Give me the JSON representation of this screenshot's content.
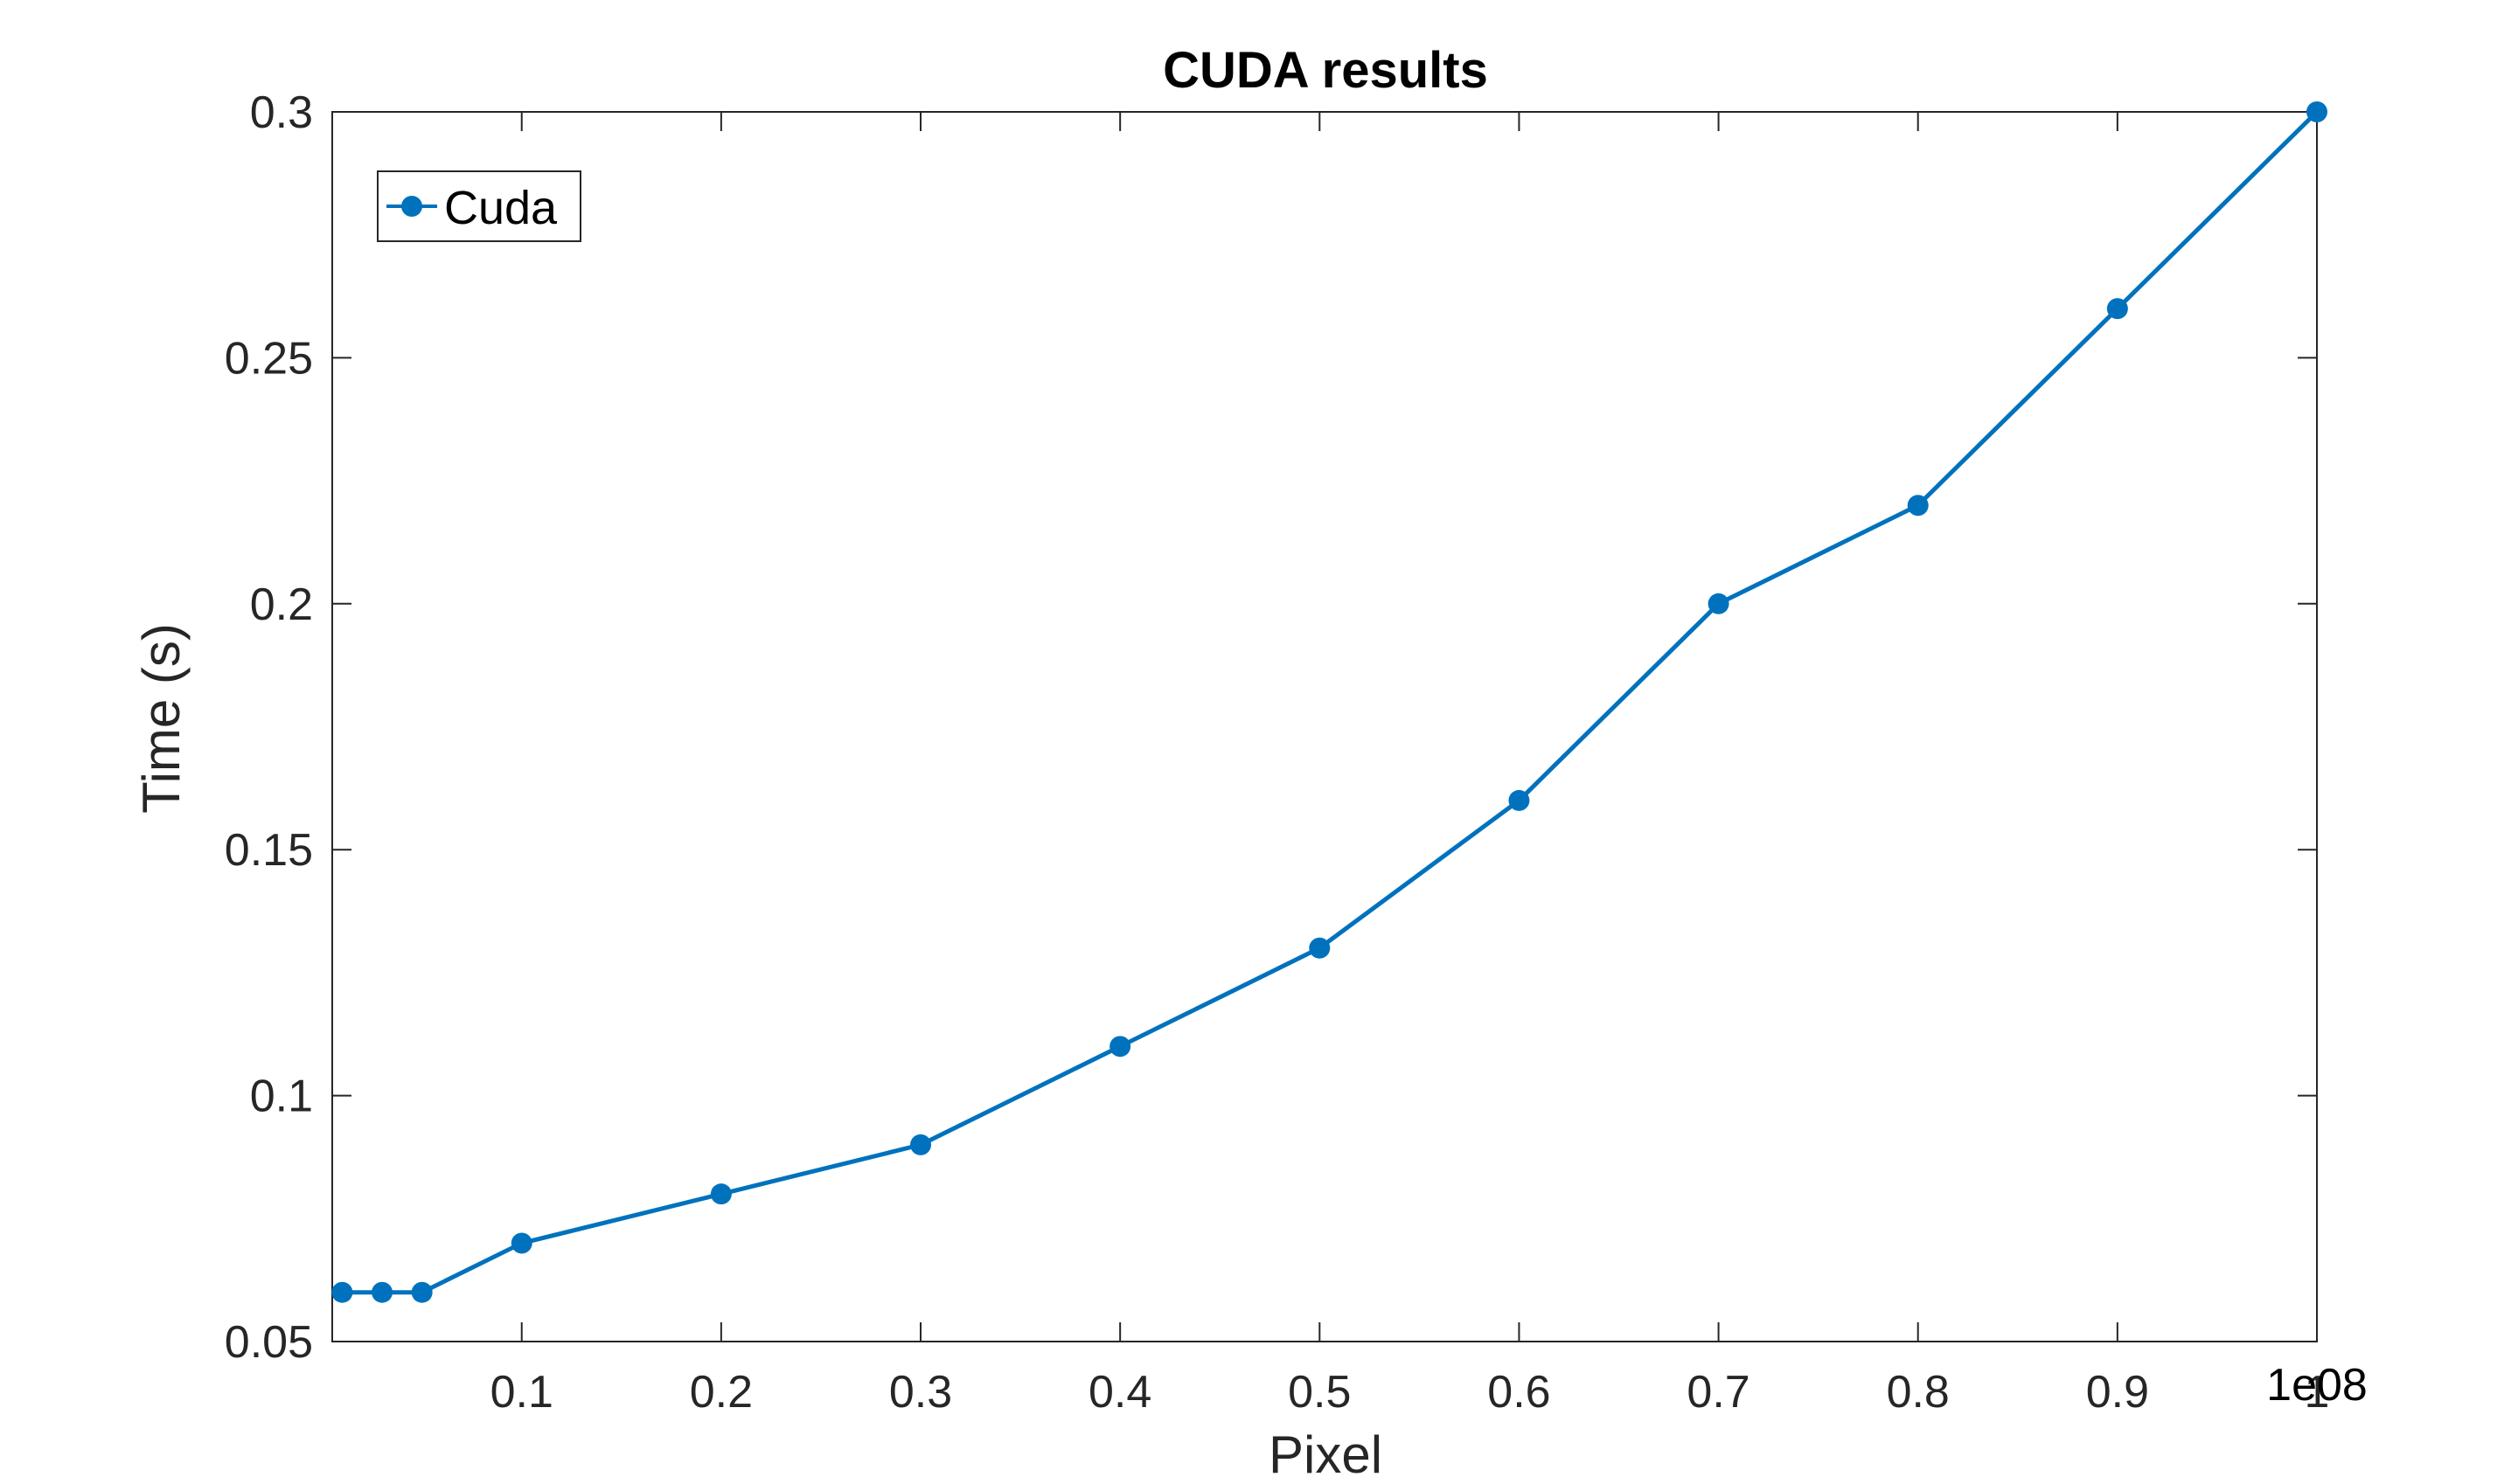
{
  "chart_data": {
    "type": "line",
    "title": "CUDA results",
    "xlabel": "Pixel",
    "ylabel": "Time (s)",
    "x_exponent_label": "1e08",
    "xlim": [
      0.005,
      1.0
    ],
    "ylim": [
      0.05,
      0.3
    ],
    "xticks": [
      0.1,
      0.2,
      0.3,
      0.4,
      0.5,
      0.6,
      0.7,
      0.8,
      0.9,
      1.0
    ],
    "xtick_labels": [
      "0.1",
      "0.2",
      "0.3",
      "0.4",
      "0.5",
      "0.6",
      "0.7",
      "0.8",
      "0.9",
      "1"
    ],
    "yticks": [
      0.05,
      0.1,
      0.15,
      0.2,
      0.25,
      0.3
    ],
    "ytick_labels": [
      "0.05",
      "0.1",
      "0.15",
      "0.2",
      "0.25",
      "0.3"
    ],
    "grid": false,
    "legend_position": "top-left",
    "series": [
      {
        "name": "Cuda",
        "color": "#0072BD",
        "x": [
          0.01,
          0.03,
          0.05,
          0.1,
          0.2,
          0.3,
          0.4,
          0.5,
          0.6,
          0.7,
          0.8,
          0.9,
          1.0
        ],
        "y": [
          0.06,
          0.06,
          0.06,
          0.07,
          0.08,
          0.09,
          0.11,
          0.13,
          0.16,
          0.2,
          0.22,
          0.26,
          0.3
        ]
      }
    ]
  }
}
